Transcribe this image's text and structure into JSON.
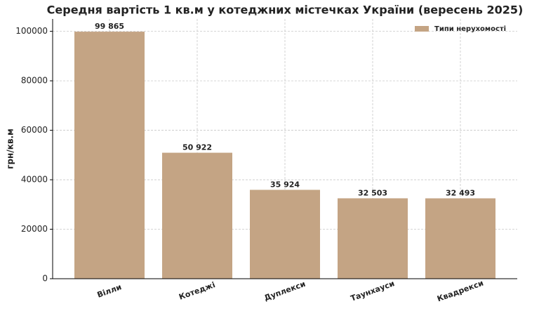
{
  "chart_data": {
    "type": "bar",
    "title": "Середня вартість 1 кв.м у котеджних містечках України (вересень 2025)",
    "ylabel": "грн/кв.м",
    "categories": [
      "Вілли",
      "Котеджі",
      "Дуплекси",
      "Таунхауси",
      "Квадрекси"
    ],
    "series": [
      {
        "name": "Типи нерухомості",
        "color": "#c4a484",
        "values": [
          99865,
          50922,
          35924,
          32503,
          32493
        ],
        "value_labels": [
          "99 865",
          "50 922",
          "35 924",
          "32 503",
          "32 493"
        ]
      }
    ],
    "ylim": [
      0,
      105000
    ],
    "yticks": [
      0,
      20000,
      40000,
      60000,
      80000,
      100000
    ],
    "grid": true,
    "legend": "upper right"
  }
}
